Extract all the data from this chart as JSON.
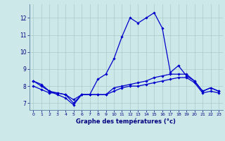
{
  "xlabel": "Graphe des températures (°c)",
  "x_labels": [
    "0",
    "1",
    "2",
    "3",
    "4",
    "5",
    "6",
    "7",
    "8",
    "9",
    "10",
    "11",
    "12",
    "13",
    "14",
    "15",
    "16",
    "17",
    "18",
    "19",
    "20",
    "21",
    "22",
    "23"
  ],
  "x_values": [
    0,
    1,
    2,
    3,
    4,
    5,
    6,
    7,
    8,
    9,
    10,
    11,
    12,
    13,
    14,
    15,
    16,
    17,
    18,
    19,
    20,
    21,
    22,
    23
  ],
  "line1": [
    8.3,
    8.1,
    7.7,
    7.5,
    7.3,
    6.9,
    7.5,
    7.5,
    8.4,
    8.7,
    9.6,
    10.9,
    12.0,
    11.7,
    12.0,
    12.3,
    11.4,
    8.8,
    9.2,
    8.6,
    8.3,
    7.7,
    7.9,
    7.7
  ],
  "line2": [
    8.3,
    8.0,
    7.7,
    7.6,
    7.5,
    7.0,
    7.5,
    7.5,
    7.5,
    7.5,
    7.9,
    8.0,
    8.1,
    8.2,
    8.3,
    8.5,
    8.6,
    8.7,
    8.7,
    8.7,
    8.3,
    7.7,
    7.9,
    7.7
  ],
  "line3": [
    8.0,
    7.8,
    7.6,
    7.6,
    7.5,
    7.2,
    7.5,
    7.5,
    7.5,
    7.5,
    7.7,
    7.9,
    8.0,
    8.0,
    8.1,
    8.2,
    8.3,
    8.4,
    8.5,
    8.5,
    8.2,
    7.6,
    7.7,
    7.6
  ],
  "line_color": "#0000cc",
  "bg_color": "#cce8e8",
  "grid_color": "#aacccc",
  "ylim": [
    6.6,
    12.8
  ],
  "yticks": [
    7,
    8,
    9,
    10,
    11,
    12
  ],
  "marker_size": 1.8,
  "line_width": 0.9
}
